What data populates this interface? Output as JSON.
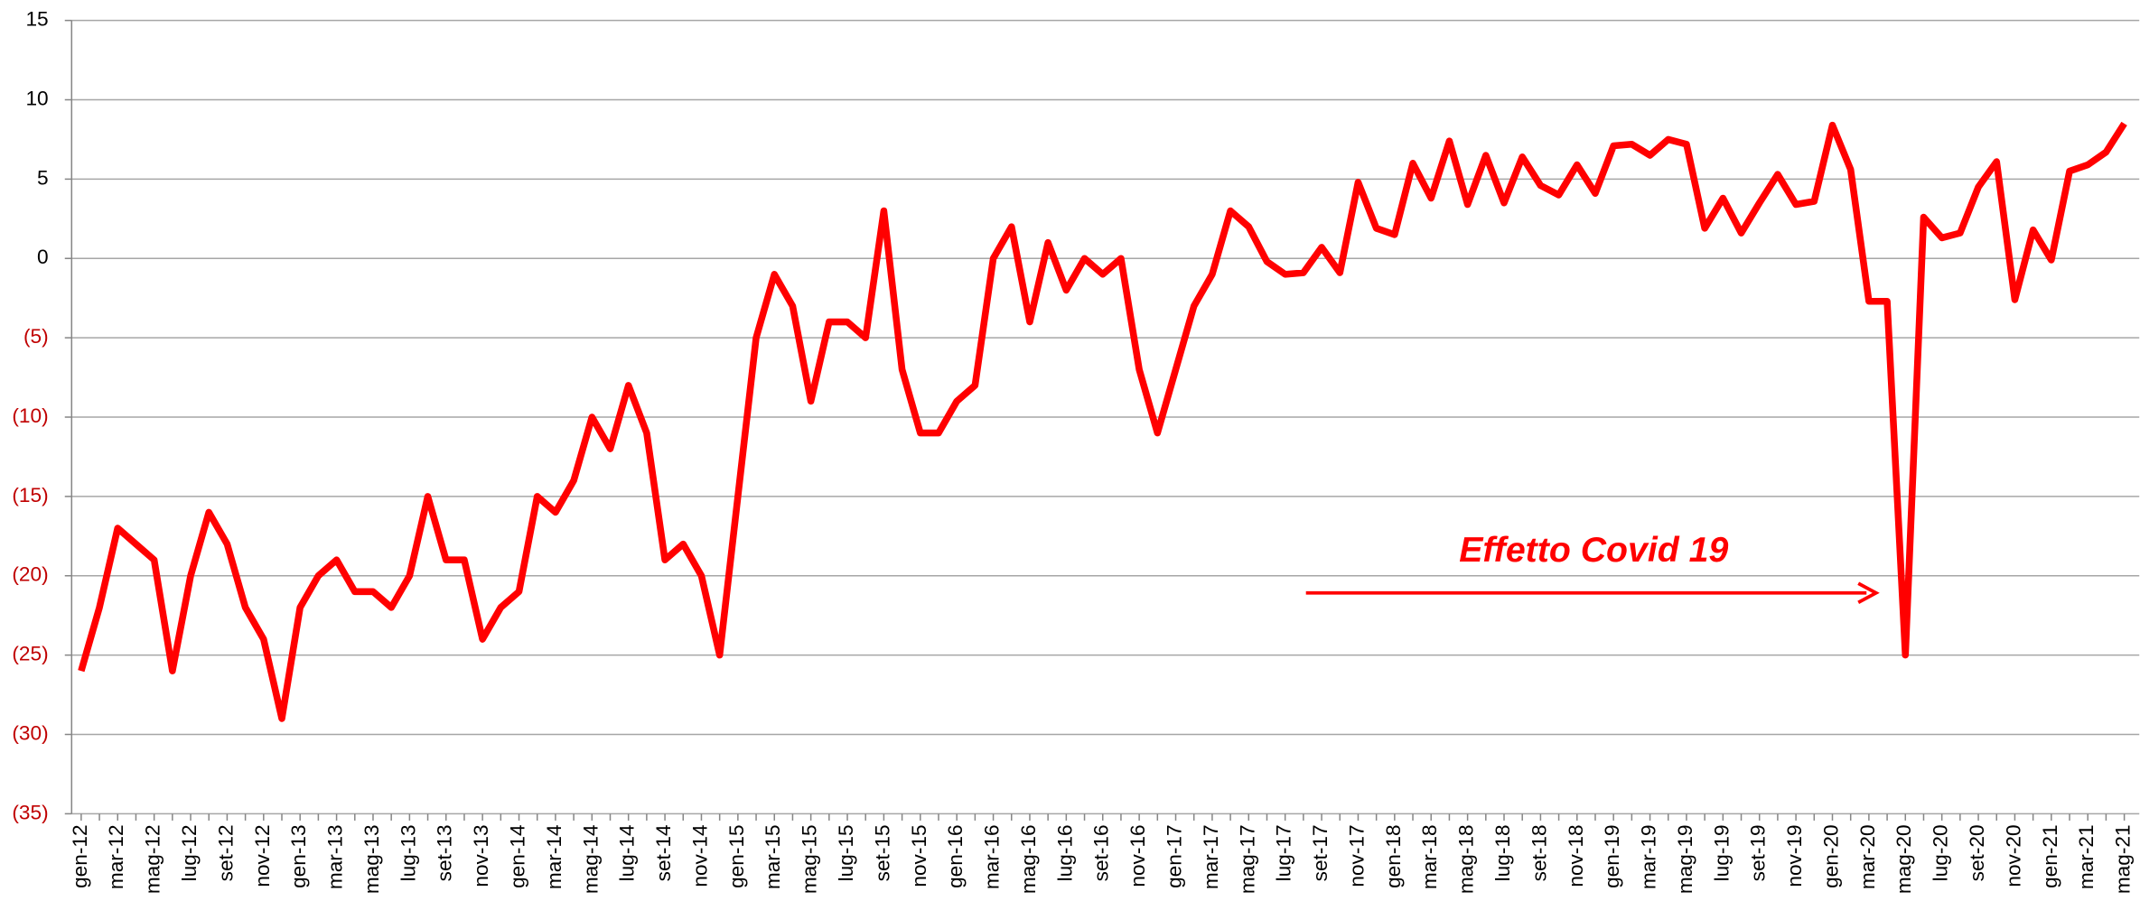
{
  "chart_data": {
    "type": "line",
    "annotation": "Effetto Covid 19",
    "annotation_color": "#ff0000",
    "grid": true,
    "negative_tick_color": "#c00000",
    "ylim": [
      -35,
      15
    ],
    "yticks": [
      15,
      10,
      5,
      0,
      {
        "value": -5,
        "label": "(5)"
      },
      {
        "value": -10,
        "label": "(10)"
      },
      {
        "value": -15,
        "label": "(15)"
      },
      {
        "value": -20,
        "label": "(20)"
      },
      {
        "value": -25,
        "label": "(25)"
      },
      {
        "value": -30,
        "label": "(30)"
      },
      {
        "value": -35,
        "label": "(35)"
      }
    ],
    "categories": [
      "gen-12",
      null,
      "mar-12",
      null,
      "mag-12",
      null,
      "lug-12",
      null,
      "set-12",
      null,
      "nov-12",
      null,
      "gen-13",
      null,
      "mar-13",
      null,
      "mag-13",
      null,
      "lug-13",
      null,
      "set-13",
      null,
      "nov-13",
      null,
      "gen-14",
      null,
      "mar-14",
      null,
      "mag-14",
      null,
      "lug-14",
      null,
      "set-14",
      null,
      "nov-14",
      null,
      "gen-15",
      null,
      "mar-15",
      null,
      "mag-15",
      null,
      "lug-15",
      null,
      "set-15",
      null,
      "nov-15",
      null,
      "gen-16",
      null,
      "mar-16",
      null,
      "mag-16",
      null,
      "lug-16",
      null,
      "set-16",
      null,
      "nov-16",
      null,
      "gen-17",
      null,
      "mar-17",
      null,
      "mag-17",
      null,
      "lug-17",
      null,
      "set-17",
      null,
      "nov-17",
      null,
      "gen-18",
      null,
      "mar-18",
      null,
      "mag-18",
      null,
      "lug-18",
      null,
      "set-18",
      null,
      "nov-18",
      null,
      "gen-19",
      null,
      "mar-19",
      null,
      "mag-19",
      null,
      "lug-19",
      null,
      "set-19",
      null,
      "nov-19",
      null,
      "gen-20",
      null,
      "mar-20",
      null,
      "mag-20",
      null,
      "lug-20",
      null,
      "set-20",
      null,
      "nov-20",
      null,
      "gen-21",
      null,
      "mar-21",
      null,
      "mag-21"
    ],
    "series": [
      {
        "color": "#ff0000",
        "values": [
          -26,
          -22,
          -17,
          -18,
          -19,
          -26,
          -20,
          -16,
          -18,
          -22,
          -24,
          -29,
          -22,
          -20,
          -19,
          -21,
          -21,
          -22,
          -20,
          -15,
          -19,
          -19,
          -24,
          -22,
          -21,
          -15,
          -16,
          -14,
          -10,
          -12,
          -8,
          -11,
          -19,
          -18,
          -20,
          -25,
          -15,
          -5,
          -1,
          -3,
          -9,
          -4,
          -4,
          -5,
          3,
          -7,
          -11,
          -11,
          -9,
          -8,
          0,
          2,
          -4,
          1,
          -2,
          0,
          -1,
          0,
          -7,
          -11,
          -7,
          -3,
          -1,
          3,
          2,
          -0.2,
          -1,
          -0.9,
          0.7,
          -0.9,
          4.8,
          1.9,
          1.5,
          6,
          3.8,
          7.4,
          3.4,
          6.5,
          3.5,
          6.4,
          4.6,
          4,
          5.9,
          4.1,
          7.1,
          7.2,
          6.5,
          7.5,
          7.2,
          1.9,
          3.8,
          1.6,
          3.5,
          5.3,
          3.4,
          3.6,
          8.4,
          5.6,
          -2.7,
          -2.7,
          -25,
          2.6,
          1.3,
          1.6,
          4.5,
          6.1,
          -2.6,
          1.8,
          -0.1,
          5.5,
          5.9,
          6.7,
          8.5
        ]
      }
    ]
  }
}
